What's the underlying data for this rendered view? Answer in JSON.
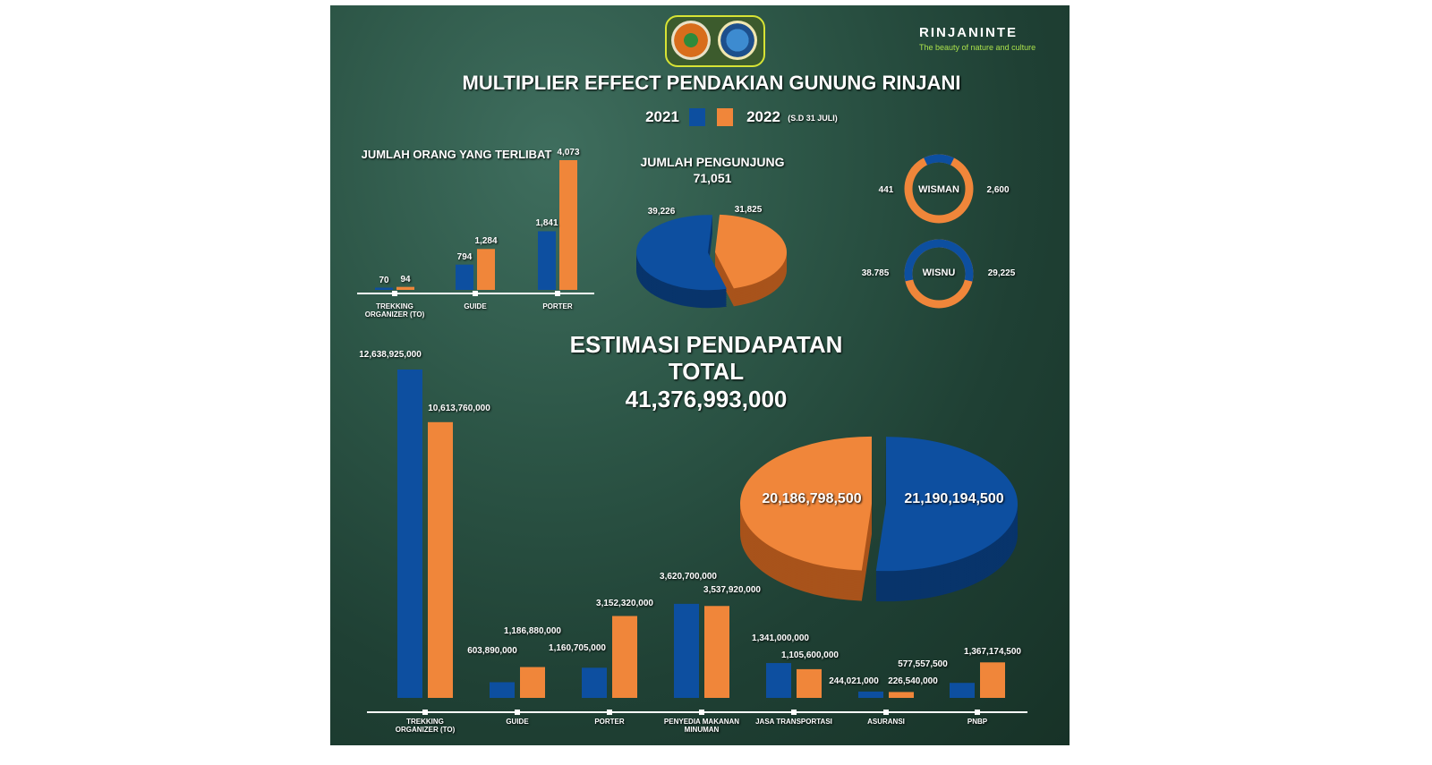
{
  "header": {
    "title": "MULTIPLIER EFFECT PENDAKIAN GUNUNG RINJANI",
    "brand": "RINJANINTE",
    "tagline": "The beauty of nature and culture",
    "legend": [
      {
        "label": "2021",
        "color": "#0d4fa0"
      },
      {
        "label": "2022",
        "note": "(S.D 31 JULI)",
        "color": "#f0863a"
      }
    ]
  },
  "chart_data": [
    {
      "type": "bar",
      "title": "JUMLAH ORANG YANG TERLIBAT",
      "categories": [
        "TREKKING ORGANIZER (TO)",
        "GUIDE",
        "PORTER"
      ],
      "series": [
        {
          "name": "2021",
          "values": [
            70,
            794,
            1841
          ]
        },
        {
          "name": "2022",
          "values": [
            94,
            1284,
            4073
          ]
        }
      ],
      "labels": [
        [
          "70",
          "94"
        ],
        [
          "794",
          "1,284"
        ],
        [
          "1,841",
          "4,073"
        ]
      ]
    },
    {
      "type": "pie",
      "title": "JUMLAH PENGUNJUNG",
      "total": "71,051",
      "values": [
        39226,
        31825
      ],
      "labels": [
        "39,226",
        "31,825"
      ],
      "series": [
        "2021",
        "2022"
      ]
    },
    {
      "type": "pie",
      "subtype": "donut",
      "title": "WISMAN",
      "values": [
        441,
        2600
      ],
      "labels": [
        "441",
        "2,600"
      ]
    },
    {
      "type": "pie",
      "subtype": "donut",
      "title": "WISNU",
      "values": [
        38785,
        29225
      ],
      "labels": [
        "38.785",
        "29,225"
      ]
    },
    {
      "type": "bar",
      "title": "ESTIMASI PENDAPATAN",
      "categories": [
        "TREKKING ORGANIZER (TO)",
        "GUIDE",
        "PORTER",
        "PENYEDIA MAKANAN MINUMAN",
        "JASA TRANSPORTASI",
        "ASURANSI",
        "PNBP"
      ],
      "series": [
        {
          "name": "2021",
          "values": [
            12638925000,
            603890000,
            1160705000,
            3620700000,
            1341000000,
            244021000,
            577557500
          ]
        },
        {
          "name": "2022",
          "values": [
            10613760000,
            1186880000,
            3152320000,
            3537920000,
            1105600000,
            226540000,
            1367174500
          ]
        }
      ],
      "labels": [
        [
          "12,638,925,000",
          "10,613,760,000"
        ],
        [
          "603,890,000",
          "1,186,880,000"
        ],
        [
          "1,160,705,000",
          "3,152,320,000"
        ],
        [
          "3,620,700,000",
          "3,537,920,000"
        ],
        [
          "1,341,000,000",
          "1,105,600,000"
        ],
        [
          "244,021,000",
          "226,540,000"
        ],
        [
          "577,557,500",
          "1,367,174,500"
        ]
      ]
    },
    {
      "type": "pie",
      "title_lines": [
        "ESTIMASI PENDAPATAN",
        "TOTAL"
      ],
      "total": "41,376,993,000",
      "values": [
        20186798500,
        21190194500
      ],
      "labels": [
        "20,186,798,500",
        "21,190,194,500"
      ]
    }
  ]
}
